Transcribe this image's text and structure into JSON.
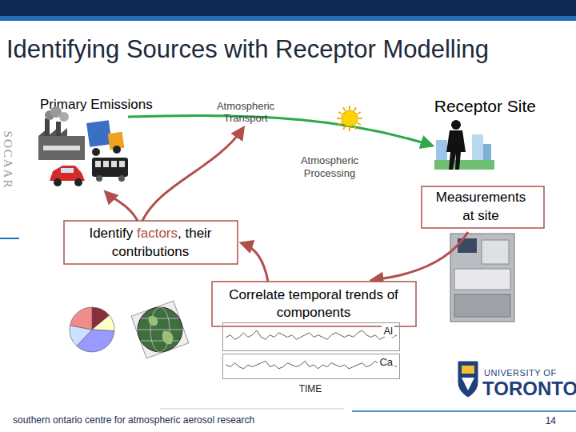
{
  "header": {
    "title": "Identifying Sources with Receptor Modelling"
  },
  "sidebar": "SOCAAR",
  "nodes": [
    {
      "id": "emissions",
      "lines": [
        "Primary Emissions"
      ]
    },
    {
      "id": "transport",
      "lines": [
        "Atmospheric",
        "Transport"
      ]
    },
    {
      "id": "receptor",
      "lines": [
        "Receptor Site"
      ]
    },
    {
      "id": "processing",
      "lines": [
        "Atmospheric",
        "Processing"
      ]
    },
    {
      "id": "measurements",
      "lines": [
        "Measurements",
        "at site"
      ]
    },
    {
      "id": "identify",
      "lines": [
        [
          "Identify ",
          "factors",
          ", their"
        ],
        [
          "contributions"
        ]
      ],
      "highlight": "factors"
    },
    {
      "id": "correlate",
      "lines": [
        "Correlate temporal trends of",
        "components"
      ]
    }
  ],
  "chart_data": {
    "type": "line",
    "x_label": "TIME",
    "tick_labels": false,
    "ylim": [
      0,
      10
    ],
    "series": [
      {
        "name": "Al",
        "values": [
          5,
          6,
          4,
          5,
          7,
          5,
          6,
          8,
          5,
          4,
          6,
          5,
          7,
          6,
          5,
          6,
          4,
          5,
          6,
          7,
          5,
          6,
          5,
          4,
          6,
          7,
          6,
          5,
          6,
          5,
          7,
          8,
          6,
          5,
          6,
          4,
          5,
          6,
          5,
          6
        ]
      },
      {
        "name": "Ca",
        "values": [
          6,
          5,
          7,
          5,
          4,
          6,
          5,
          6,
          7,
          8,
          5,
          6,
          4,
          5,
          7,
          6,
          5,
          6,
          8,
          5,
          6,
          4,
          6,
          5,
          7,
          6,
          5,
          6,
          4,
          5,
          6,
          7,
          5,
          6,
          8,
          6,
          5,
          7,
          6,
          5
        ]
      }
    ]
  },
  "logo": {
    "lines": [
      "UNIVERSITY OF",
      "TORONTO"
    ]
  },
  "footer": {
    "text": "southern ontario centre for atmospheric aerosol research",
    "page": "14"
  }
}
